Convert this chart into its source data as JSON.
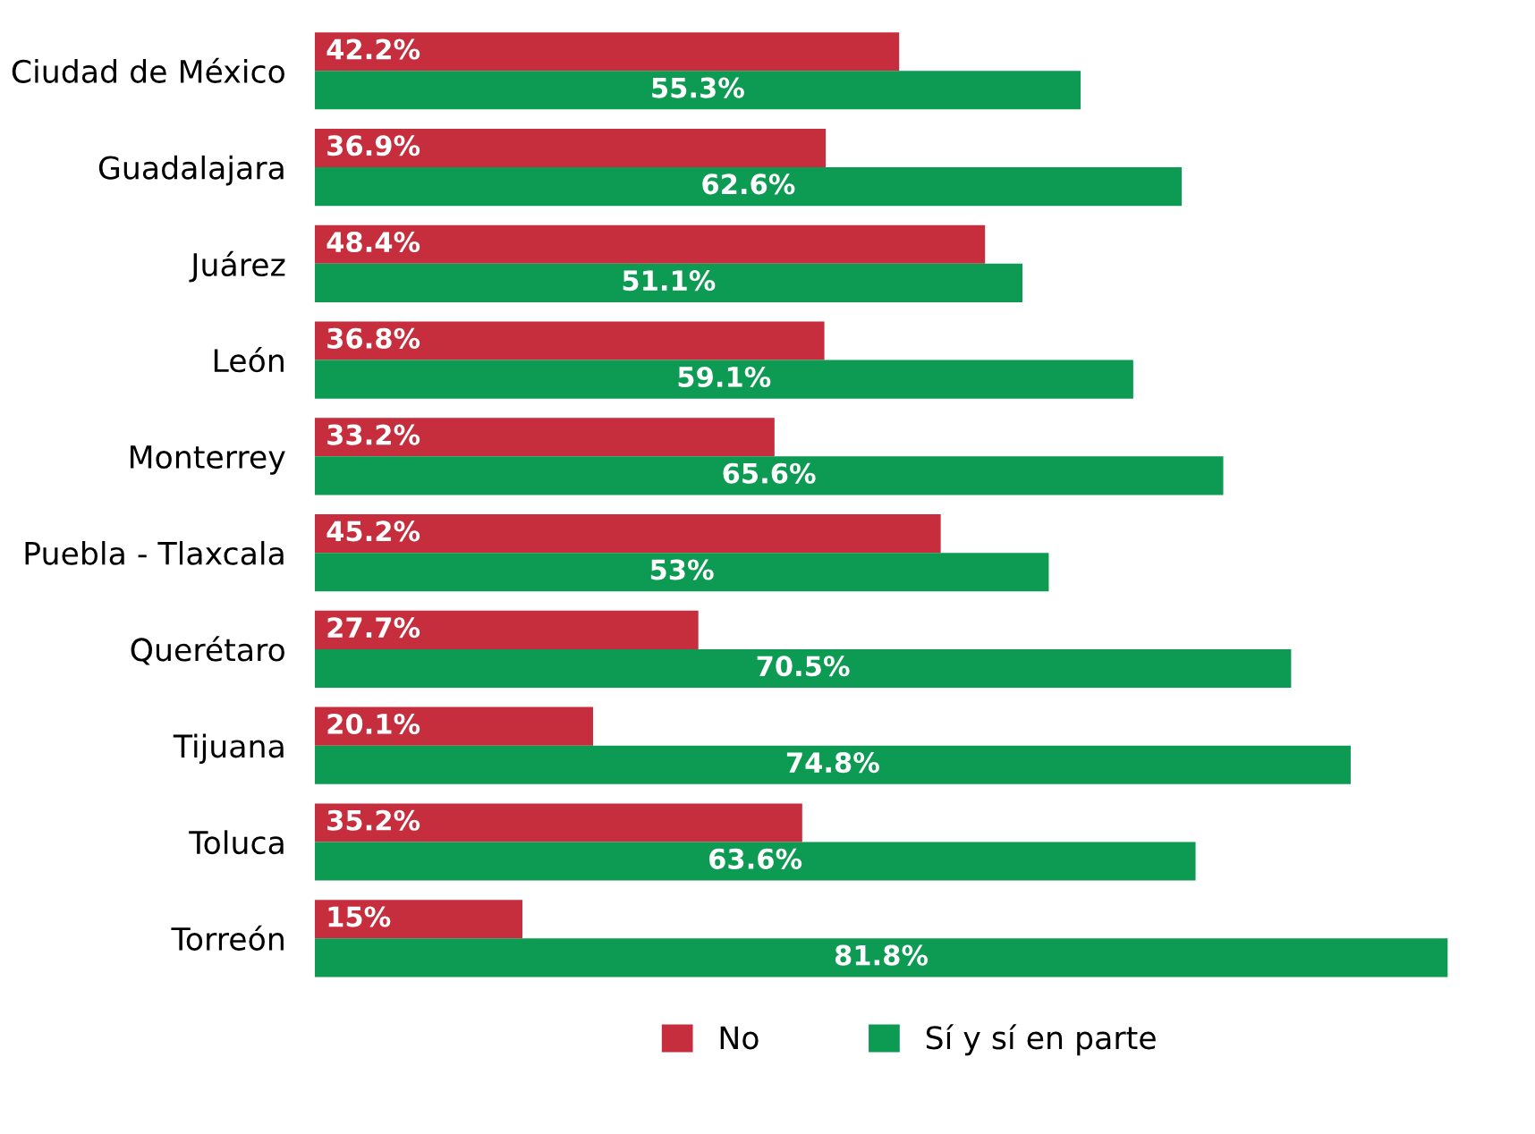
{
  "chart_data": {
    "type": "bar",
    "orientation": "horizontal",
    "categories": [
      "Ciudad de México",
      "Guadalajara",
      "Juárez",
      "León",
      "Monterrey",
      "Puebla - Tlaxcala",
      "Querétaro",
      "Tijuana",
      "Toluca",
      "Torreón"
    ],
    "series": [
      {
        "name": "No",
        "color": "#c62e3e",
        "values": [
          42.2,
          36.9,
          48.4,
          36.8,
          33.2,
          45.2,
          27.7,
          20.1,
          35.2,
          15
        ],
        "value_labels": [
          "42.2%",
          "36.9%",
          "48.4%",
          "36.8%",
          "33.2%",
          "45.2%",
          "27.7%",
          "20.1%",
          "35.2%",
          "15%"
        ]
      },
      {
        "name": "Sí y sí en parte",
        "color": "#0d9a52",
        "values": [
          55.3,
          62.6,
          51.1,
          59.1,
          65.6,
          53,
          70.5,
          74.8,
          63.6,
          81.8
        ],
        "value_labels": [
          "55.3%",
          "62.6%",
          "51.1%",
          "59.1%",
          "65.6%",
          "53%",
          "70.5%",
          "74.8%",
          "63.6%",
          "81.8%"
        ]
      }
    ],
    "legend": "bottom",
    "grid": false,
    "tick_labels": "y"
  }
}
